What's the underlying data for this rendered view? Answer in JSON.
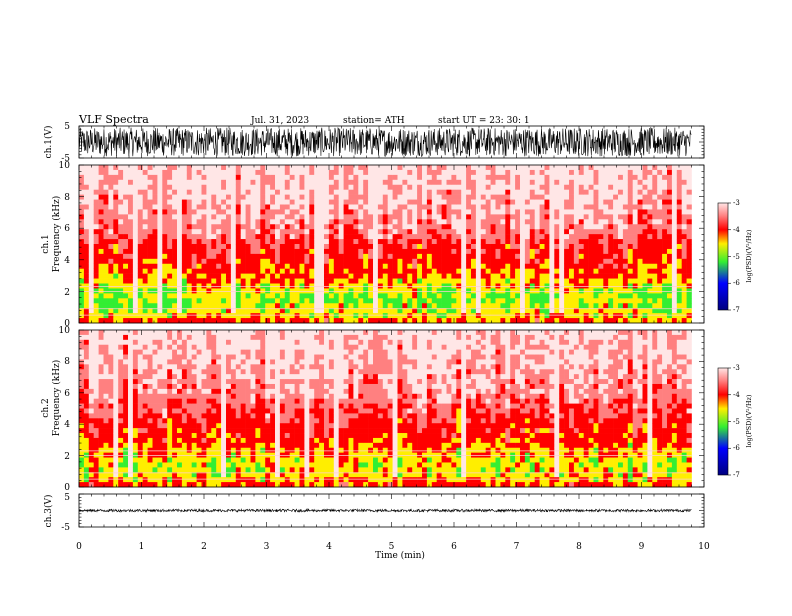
{
  "header": {
    "title": "VLF  Spectra",
    "date": "Jul.  31,  2023",
    "station": "station= ATH",
    "start": "start  UT  =    23: 30: 1"
  },
  "chart_data": [
    {
      "type": "line",
      "name": "ch1-waveform",
      "ylabel": "ch.1(V)",
      "yticks": [
        "5",
        "-5"
      ],
      "ylim": [
        -5,
        5
      ],
      "xlim": [
        0,
        10
      ],
      "amplitude": 4.5,
      "end_time": 9.8
    },
    {
      "type": "heatmap",
      "name": "ch1-spectrogram",
      "ylabel": "ch.1\nFrequency  (kHz)",
      "ylabel_lines": [
        "ch.1",
        "Frequency  (kHz)"
      ],
      "yticks": [
        "0",
        "2",
        "4",
        "6",
        "8",
        "10"
      ],
      "ylim": [
        0,
        10
      ],
      "xlim": [
        0,
        10
      ],
      "colorbar": {
        "label": "log(PSD)(V²/Hz)",
        "ticks": [
          "-3",
          "-4",
          "-5",
          "-6",
          "-7"
        ],
        "range": [
          -7,
          -3
        ]
      },
      "profile": [
        [
          0.0,
          -4.0
        ],
        [
          0.5,
          -4.5
        ],
        [
          1.0,
          -4.6
        ],
        [
          1.5,
          -4.8
        ],
        [
          2.0,
          -4.6
        ],
        [
          3.0,
          -4.2
        ],
        [
          4.0,
          -4.0
        ],
        [
          5.0,
          -3.8
        ],
        [
          6.0,
          -3.5
        ],
        [
          8.0,
          -3.3
        ],
        [
          10.0,
          -3.2
        ]
      ]
    },
    {
      "type": "heatmap",
      "name": "ch2-spectrogram",
      "ylabel": "ch.2\nFrequency  (kHz)",
      "ylabel_lines": [
        "ch.2",
        "Frequency  (kHz)"
      ],
      "yticks": [
        "0",
        "2",
        "4",
        "6",
        "8",
        "10"
      ],
      "ylim": [
        0,
        10
      ],
      "xlim": [
        0,
        10
      ],
      "colorbar": {
        "label": "log(PSD)(V²/Hz)",
        "ticks": [
          "-3",
          "-4",
          "-5",
          "-6",
          "-7"
        ],
        "range": [
          -7,
          -3
        ]
      },
      "profile": [
        [
          0.0,
          -4.0
        ],
        [
          0.5,
          -4.4
        ],
        [
          1.0,
          -4.5
        ],
        [
          1.5,
          -4.6
        ],
        [
          2.0,
          -4.4
        ],
        [
          3.0,
          -4.1
        ],
        [
          4.0,
          -3.9
        ],
        [
          5.0,
          -3.7
        ],
        [
          6.0,
          -3.5
        ],
        [
          8.0,
          -3.3
        ],
        [
          10.0,
          -3.2
        ]
      ]
    },
    {
      "type": "line",
      "name": "ch3-waveform",
      "ylabel": "ch.3(V)",
      "yticks": [
        "5",
        "-5"
      ],
      "ylim": [
        -5,
        5
      ],
      "xlim": [
        0,
        10
      ],
      "amplitude": 0.4,
      "end_time": 9.8
    }
  ],
  "xaxis": {
    "label": "Time  (min)",
    "ticks": [
      "0",
      "1",
      "2",
      "3",
      "4",
      "5",
      "6",
      "7",
      "8",
      "9",
      "10"
    ]
  },
  "colors": {
    "red": "#ff0000",
    "light_red": "#ff8080",
    "pink": "#ffe6e6",
    "yellow": "#ffee00",
    "green": "#33ee33",
    "blue": "#0000ff",
    "navy": "#000080",
    "black": "#000000"
  }
}
